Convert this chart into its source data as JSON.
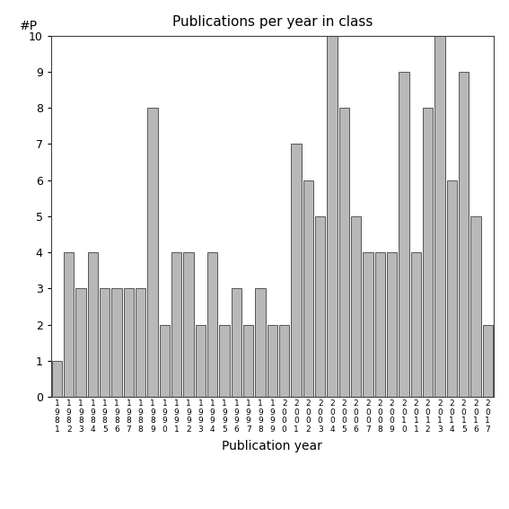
{
  "title": "Publications per year in class",
  "xlabel": "Publication year",
  "ylabel": "#P",
  "bar_color": "#b8b8b8",
  "edge_color": "#404040",
  "years": [
    "1981",
    "1982",
    "1983",
    "1984",
    "1985",
    "1986",
    "1987",
    "1988",
    "1989",
    "1990",
    "1991",
    "1992",
    "1993",
    "1994",
    "1995",
    "1996",
    "1997",
    "1998",
    "1999",
    "2000",
    "2001",
    "2002",
    "2003",
    "2004",
    "2005",
    "2006",
    "2007",
    "2008",
    "2009",
    "2010",
    "2011",
    "2012",
    "2013",
    "2014",
    "2015",
    "2016",
    "2017"
  ],
  "values": [
    1,
    4,
    3,
    4,
    3,
    3,
    3,
    3,
    8,
    2,
    4,
    4,
    2,
    4,
    2,
    3,
    2,
    3,
    2,
    2,
    7,
    6,
    5,
    10,
    8,
    5,
    4,
    4,
    4,
    9,
    4,
    8,
    10,
    6,
    9,
    5,
    2
  ],
  "ylim": [
    0,
    10
  ],
  "yticks": [
    0,
    1,
    2,
    3,
    4,
    5,
    6,
    7,
    8,
    9,
    10
  ],
  "background_color": "#ffffff"
}
